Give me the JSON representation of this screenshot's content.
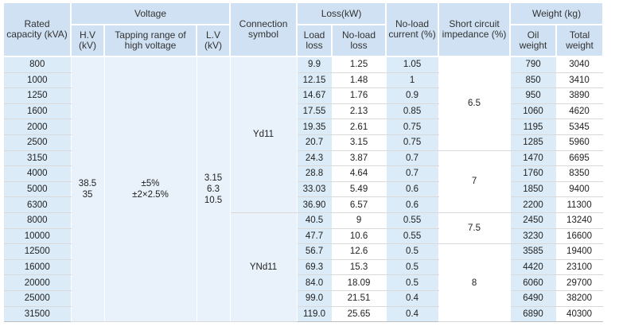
{
  "headers": {
    "rated_capacity": "Rated capacity (kVA)",
    "voltage": "Voltage",
    "hv": "H.V (kV)",
    "tapping": "Tapping range of high voltage",
    "lv": "L.V (kV)",
    "connection": "Connection symbol",
    "loss": "Loss(kW)",
    "load_loss": "Load loss",
    "no_load_loss": "No-load loss",
    "no_load_current": "No-load current (%)",
    "short_circuit": "Short circuit impedance (%)",
    "weight": "Weight (kg)",
    "oil_weight": "Oil weight",
    "total_weight": "Total weight"
  },
  "groups": {
    "hv": "38.5\n35",
    "tapping": "±5%\n±2×2.5%",
    "lv": "3.15\n6.3\n10.5",
    "connection_1": "Yd11",
    "connection_2": "YNd11",
    "sc_1": "6.5",
    "sc_2": "7",
    "sc_3": "7.5",
    "sc_4": "8"
  },
  "rows": [
    {
      "cap": "800",
      "load": "9.9",
      "noload": "1.25",
      "cur": "1.05",
      "oil": "790",
      "total": "3040"
    },
    {
      "cap": "1000",
      "load": "12.15",
      "noload": "1.48",
      "cur": "1",
      "oil": "850",
      "total": "3410"
    },
    {
      "cap": "1250",
      "load": "14.67",
      "noload": "1.76",
      "cur": "0.9",
      "oil": "950",
      "total": "3890"
    },
    {
      "cap": "1600",
      "load": "17.55",
      "noload": "2.13",
      "cur": "0.85",
      "oil": "1060",
      "total": "4620"
    },
    {
      "cap": "2000",
      "load": "19.35",
      "noload": "2.61",
      "cur": "0.75",
      "oil": "1195",
      "total": "5345"
    },
    {
      "cap": "2500",
      "load": "20.7",
      "noload": "3.15",
      "cur": "0.75",
      "oil": "1285",
      "total": "5960"
    },
    {
      "cap": "3150",
      "load": "24.3",
      "noload": "3.87",
      "cur": "0.7",
      "oil": "1470",
      "total": "6695"
    },
    {
      "cap": "4000",
      "load": "28.8",
      "noload": "4.64",
      "cur": "0.7",
      "oil": "1760",
      "total": "8350"
    },
    {
      "cap": "5000",
      "load": "33.03",
      "noload": "5.49",
      "cur": "0.6",
      "oil": "1850",
      "total": "9400"
    },
    {
      "cap": "6300",
      "load": "36.90",
      "noload": "6.57",
      "cur": "0.6",
      "oil": "2200",
      "total": "11300"
    },
    {
      "cap": "8000",
      "load": "40.5",
      "noload": "9",
      "cur": "0.55",
      "oil": "2450",
      "total": "13240"
    },
    {
      "cap": "10000",
      "load": "47.7",
      "noload": "10.6",
      "cur": "0.55",
      "oil": "3230",
      "total": "16600"
    },
    {
      "cap": "12500",
      "load": "56.7",
      "noload": "12.6",
      "cur": "0.5",
      "oil": "3585",
      "total": "19400"
    },
    {
      "cap": "16000",
      "load": "69.3",
      "noload": "15.3",
      "cur": "0.5",
      "oil": "4420",
      "total": "23100"
    },
    {
      "cap": "20000",
      "load": "84.0",
      "noload": "18.09",
      "cur": "0.5",
      "oil": "6060",
      "total": "29700"
    },
    {
      "cap": "25000",
      "load": "99.0",
      "noload": "21.51",
      "cur": "0.4",
      "oil": "6490",
      "total": "38200"
    },
    {
      "cap": "31500",
      "load": "119.0",
      "noload": "25.65",
      "cur": "0.4",
      "oil": "6890",
      "total": "40300"
    }
  ]
}
